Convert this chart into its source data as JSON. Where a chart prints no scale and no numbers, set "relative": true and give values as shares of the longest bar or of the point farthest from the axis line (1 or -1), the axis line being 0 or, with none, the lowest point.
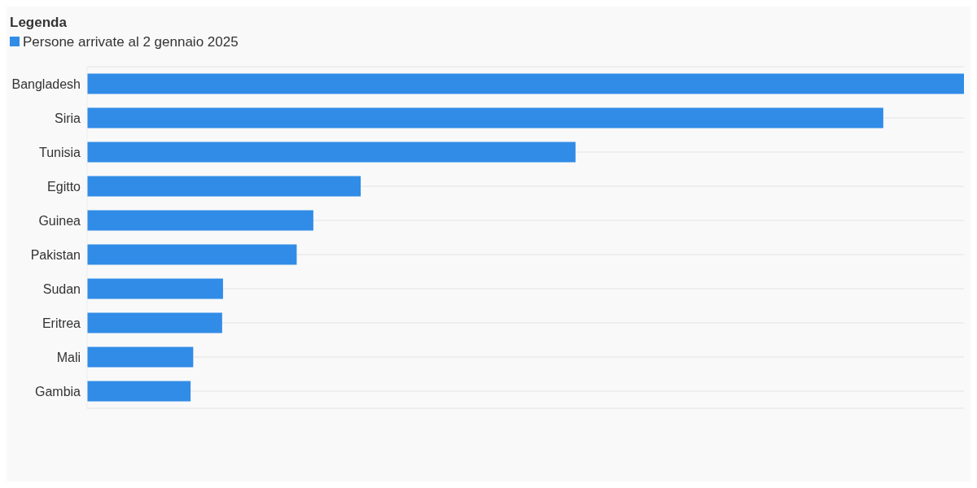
{
  "chart_data": {
    "type": "bar",
    "orientation": "horizontal",
    "relative": true,
    "legend_title": "Legenda",
    "legend": "top left",
    "grid": "y",
    "categories": [
      "Bangladesh",
      "Siria",
      "Tunisia",
      "Egitto",
      "Guinea",
      "Pakistan",
      "Sudan",
      "Eritrea",
      "Mali",
      "Gambia"
    ],
    "series": [
      {
        "name": "Persone arrivate al 2 gennaio 2025",
        "color": "#318ce7",
        "values": [
          1,
          0.908,
          0.557,
          0.312,
          0.258,
          0.239,
          0.155,
          0.154,
          0.121,
          0.118
        ]
      }
    ]
  }
}
